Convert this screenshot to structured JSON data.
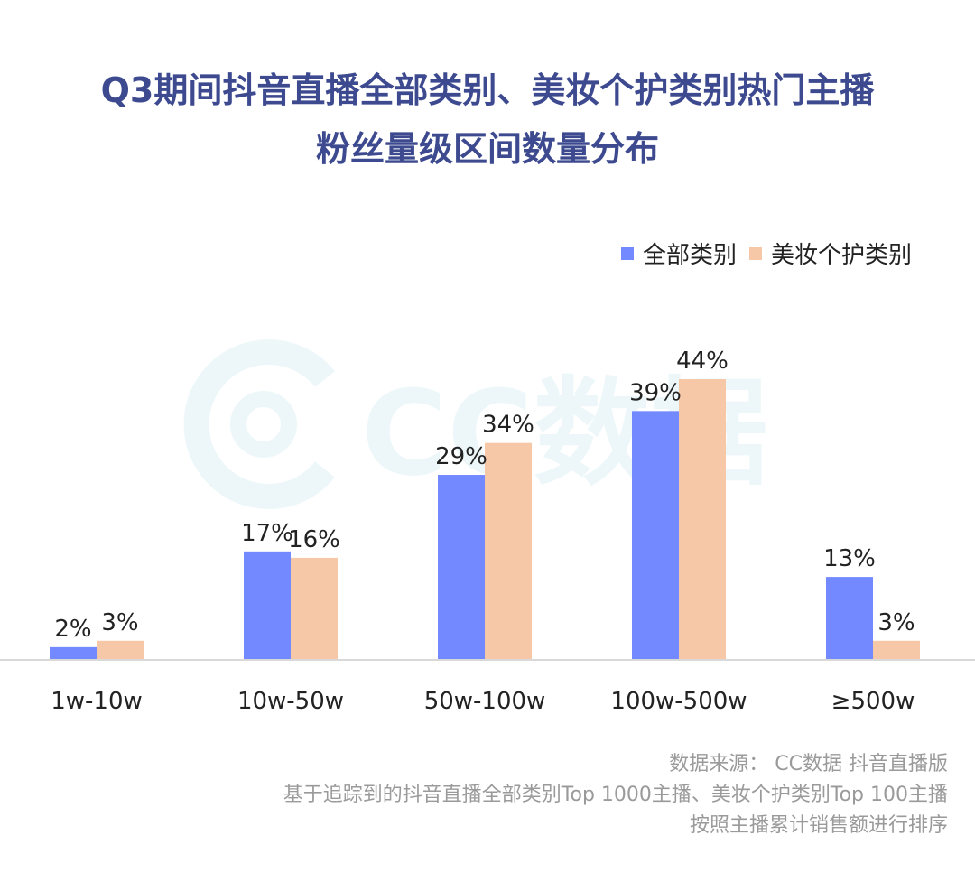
{
  "title_line1": "Q3期间抖音直播全部类别、美妆个护类别热门主播",
  "title_line2": "粉丝量级区间数量分布",
  "watermark": "CC数据",
  "colors": {
    "title": "#3d4a8f",
    "series1": "#7389ff",
    "series2": "#f7c8a8",
    "axis": "#d9d9d9",
    "source": "#9a9a9a"
  },
  "chart_data": {
    "type": "bar",
    "categories": [
      "1w-10w",
      "10w-50w",
      "50w-100w",
      "100w-500w",
      "≥500w"
    ],
    "series": [
      {
        "name": "全部类别",
        "values": [
          2,
          17,
          29,
          39,
          13
        ],
        "labels": [
          "2%",
          "17%",
          "29%",
          "39%",
          "13%"
        ]
      },
      {
        "name": "美妆个护类别",
        "values": [
          3,
          16,
          34,
          44,
          3
        ],
        "labels": [
          "3%",
          "16%",
          "34%",
          "44%",
          "3%"
        ]
      }
    ],
    "unit": "%",
    "ylim": [
      0,
      44
    ],
    "grid": false,
    "legend_position": "top-right"
  },
  "source": {
    "line1": "数据来源： CC数据 抖音直播版",
    "line2": "基于追踪到的抖音直播全部类别Top 1000主播、美妆个护类别Top 100主播",
    "line3": "按照主播累计销售额进行排序"
  }
}
